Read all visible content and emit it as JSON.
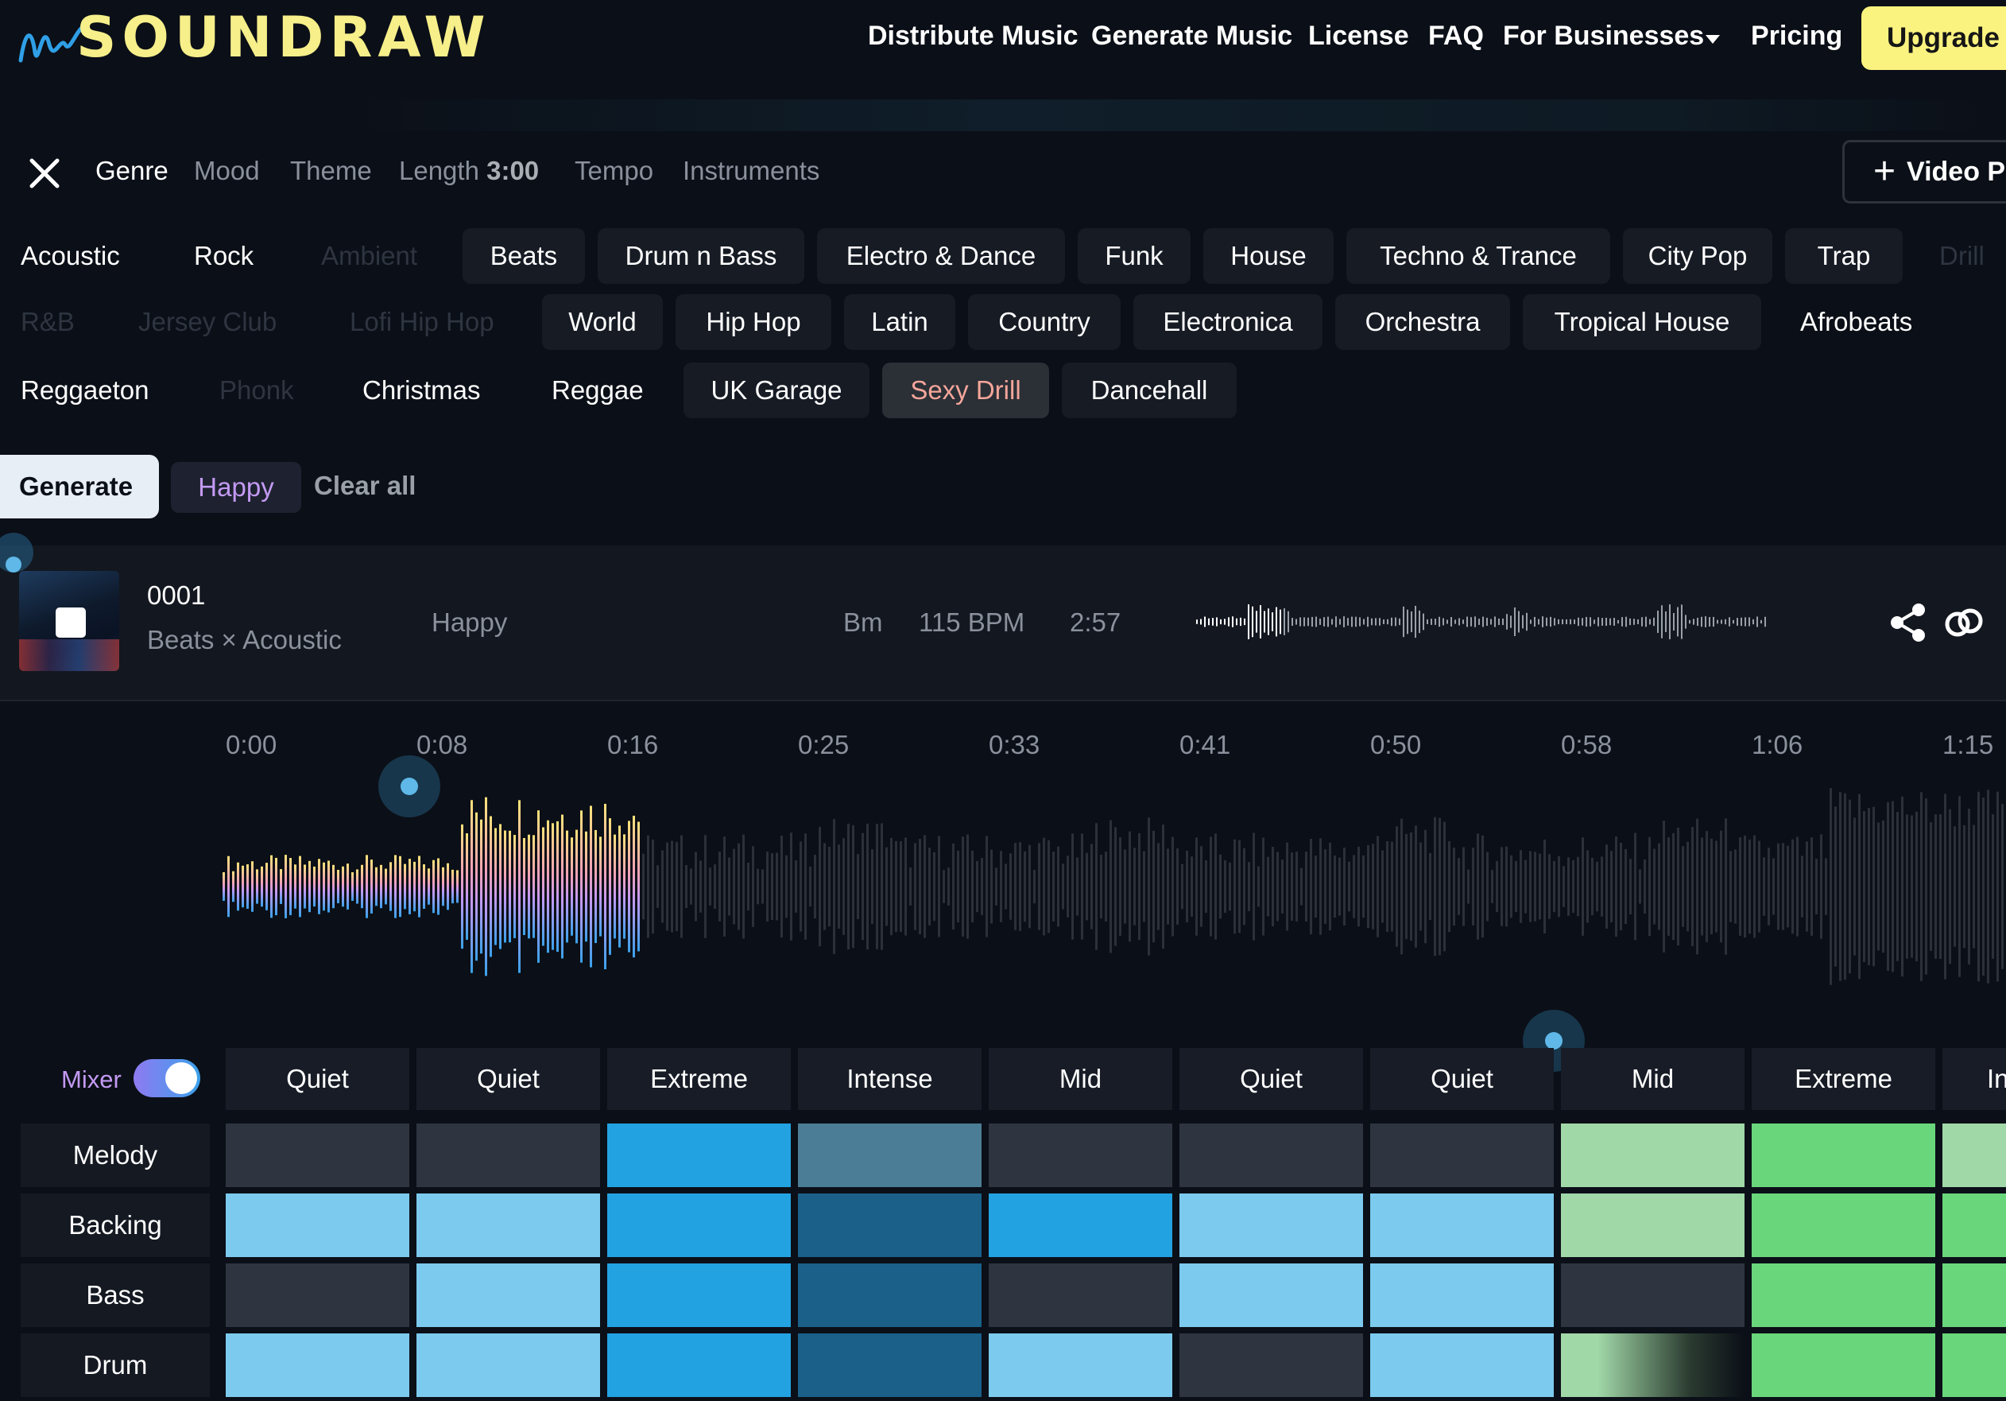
{
  "header": {
    "logo_text": "SOUNDRAW",
    "nav": [
      {
        "label": "Distribute Music"
      },
      {
        "label": "Generate Music"
      },
      {
        "label": "License"
      },
      {
        "label": "FAQ"
      },
      {
        "label": "For Businesses"
      },
      {
        "label": "Pricing"
      }
    ],
    "upgrade_label": "Upgrade"
  },
  "filters": {
    "tabs": [
      "Genre",
      "Mood",
      "Theme",
      "Length",
      "Tempo",
      "Instruments"
    ],
    "length_value": "3:00",
    "video_button_label": "Video P"
  },
  "genres": [
    "Acoustic",
    "Rock",
    "Ambient",
    "Beats",
    "Drum n Bass",
    "Electro & Dance",
    "Funk",
    "House",
    "Techno & Trance",
    "City Pop",
    "Trap",
    "Drill",
    "R&B",
    "Jersey Club",
    "Lofi Hip Hop",
    "World",
    "Hip Hop",
    "Latin",
    "Country",
    "Electronica",
    "Orchestra",
    "Tropical House",
    "Afrobeats",
    "Reggaeton",
    "Phonk",
    "Christmas",
    "Reggae",
    "UK Garage",
    "Sexy Drill",
    "Dancehall"
  ],
  "selected_genre": "Sexy Drill",
  "actions": {
    "generate_label": "Generate",
    "selected_mood_chip": "Happy",
    "clear_all_label": "Clear all"
  },
  "track": {
    "number": "0001",
    "genres": "Beats × Acoustic",
    "mood": "Happy",
    "key": "Bm",
    "bpm": "115 BPM",
    "duration": "2:57"
  },
  "timeline": {
    "ticks": [
      "0:00",
      "0:08",
      "0:16",
      "0:25",
      "0:33",
      "0:41",
      "0:50",
      "0:58",
      "1:06",
      "1:15"
    ],
    "playback_position_fraction": 0.235
  },
  "mixer": {
    "label": "Mixer",
    "enabled": true,
    "intensities": [
      "Quiet",
      "Quiet",
      "Extreme",
      "Intense",
      "Mid",
      "Quiet",
      "Quiet",
      "Mid",
      "Extreme",
      "Intense"
    ],
    "instruments": [
      "Melody",
      "Backing",
      "Bass",
      "Drum"
    ],
    "grid": [
      [
        "off",
        "off",
        "blue-mid",
        "teal",
        "off",
        "off",
        "off",
        "green-light",
        "green",
        "green-light"
      ],
      [
        "blue-light",
        "blue-light",
        "blue-mid",
        "blue-dark",
        "blue-mid",
        "blue-light",
        "blue-light",
        "green-light",
        "green",
        "green"
      ],
      [
        "off",
        "blue-light",
        "blue-mid",
        "blue-dark",
        "off",
        "blue-light",
        "blue-light",
        "off",
        "green",
        "green"
      ],
      [
        "blue-light",
        "blue-light",
        "blue-mid",
        "blue-dark",
        "blue-light",
        "off",
        "blue-light",
        "green-fade",
        "green",
        "green"
      ]
    ]
  },
  "colors": {
    "accent_yellow": "#fbf37f",
    "selected_genre_text": "#f4a69a",
    "mood_purple": "#c39af3",
    "blue_light": "#7ccaee",
    "blue_mid": "#23a2e2",
    "blue_dark": "#1a6089",
    "teal": "#4b7e96",
    "green": "#6ad67b",
    "green_light": "#a1d8a8",
    "off": "#2e3540"
  }
}
